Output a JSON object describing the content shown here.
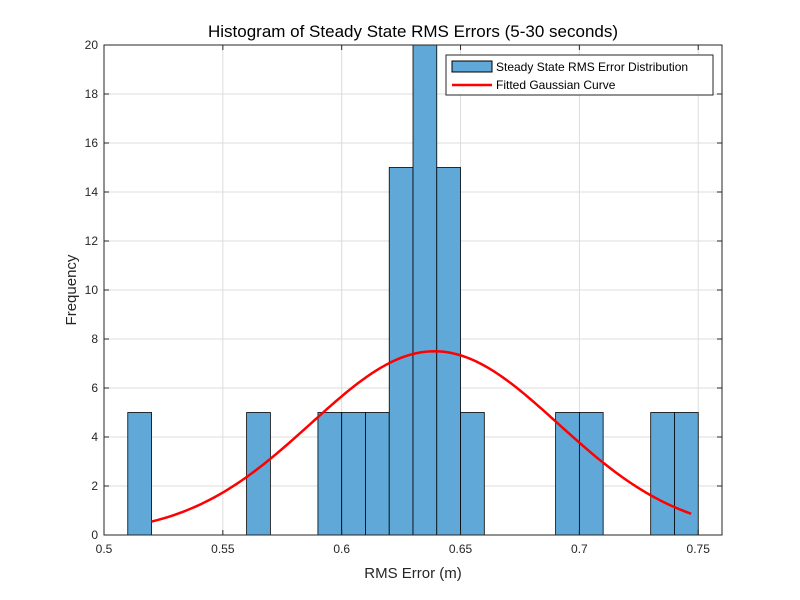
{
  "chart_data": {
    "type": "bar",
    "title": "Histogram of Steady State RMS Errors (5-30 seconds)",
    "xlabel": "RMS Error (m)",
    "ylabel": "Frequency",
    "xlim": [
      0.5,
      0.76
    ],
    "ylim": [
      0,
      20
    ],
    "xticks": [
      0.5,
      0.55,
      0.6,
      0.65,
      0.7,
      0.75
    ],
    "xtick_labels": [
      "0.5",
      "0.55",
      "0.6",
      "0.65",
      "0.7",
      "0.75"
    ],
    "yticks": [
      0,
      2,
      4,
      6,
      8,
      10,
      12,
      14,
      16,
      18,
      20
    ],
    "ytick_labels": [
      "0",
      "2",
      "4",
      "6",
      "8",
      "10",
      "12",
      "14",
      "16",
      "18",
      "20"
    ],
    "grid": true,
    "legend_location": "top-right",
    "histogram": {
      "name": "Steady State RMS Error Distribution",
      "color": "#5fa8d8",
      "edge_color": "#000000",
      "bin_width": 0.01,
      "bins": [
        {
          "start": 0.51,
          "end": 0.52,
          "count": 5
        },
        {
          "start": 0.56,
          "end": 0.57,
          "count": 5
        },
        {
          "start": 0.59,
          "end": 0.6,
          "count": 5
        },
        {
          "start": 0.6,
          "end": 0.61,
          "count": 5
        },
        {
          "start": 0.61,
          "end": 0.62,
          "count": 5
        },
        {
          "start": 0.62,
          "end": 0.63,
          "count": 15
        },
        {
          "start": 0.63,
          "end": 0.64,
          "count": 20
        },
        {
          "start": 0.64,
          "end": 0.65,
          "count": 15
        },
        {
          "start": 0.65,
          "end": 0.66,
          "count": 5
        },
        {
          "start": 0.69,
          "end": 0.7,
          "count": 5
        },
        {
          "start": 0.7,
          "end": 0.71,
          "count": 5
        },
        {
          "start": 0.73,
          "end": 0.74,
          "count": 5
        },
        {
          "start": 0.74,
          "end": 0.75,
          "count": 5
        }
      ]
    },
    "curve": {
      "name": "Fitted Gaussian Curve",
      "color": "#ff0000",
      "type": "gaussian",
      "peak": 7.5,
      "mean": 0.639,
      "std": 0.052,
      "x_start": 0.52,
      "x_end": 0.747
    }
  }
}
